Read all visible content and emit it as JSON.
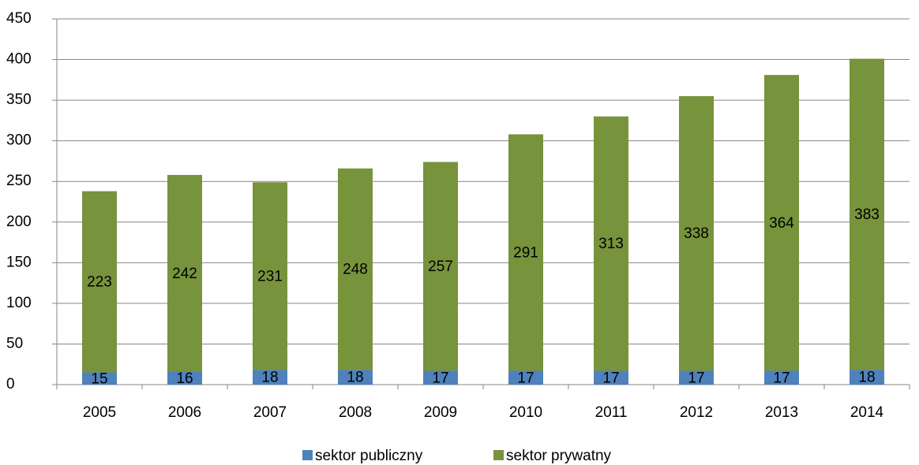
{
  "chart_data": {
    "type": "stacked_bar",
    "categories": [
      "2005",
      "2006",
      "2007",
      "2008",
      "2009",
      "2010",
      "2011",
      "2012",
      "2013",
      "2014"
    ],
    "series": [
      {
        "name": "sektor publiczny",
        "color": "#4f81bd",
        "values": [
          15,
          16,
          18,
          18,
          17,
          17,
          17,
          17,
          17,
          18
        ]
      },
      {
        "name": "sektor prywatny",
        "color": "#77933c",
        "values": [
          223,
          242,
          231,
          248,
          257,
          291,
          313,
          338,
          364,
          383
        ]
      }
    ],
    "ylim": [
      0,
      450
    ],
    "yticks": [
      0,
      50,
      100,
      150,
      200,
      250,
      300,
      350,
      400,
      450
    ],
    "grid": true,
    "legend": "bottom"
  }
}
